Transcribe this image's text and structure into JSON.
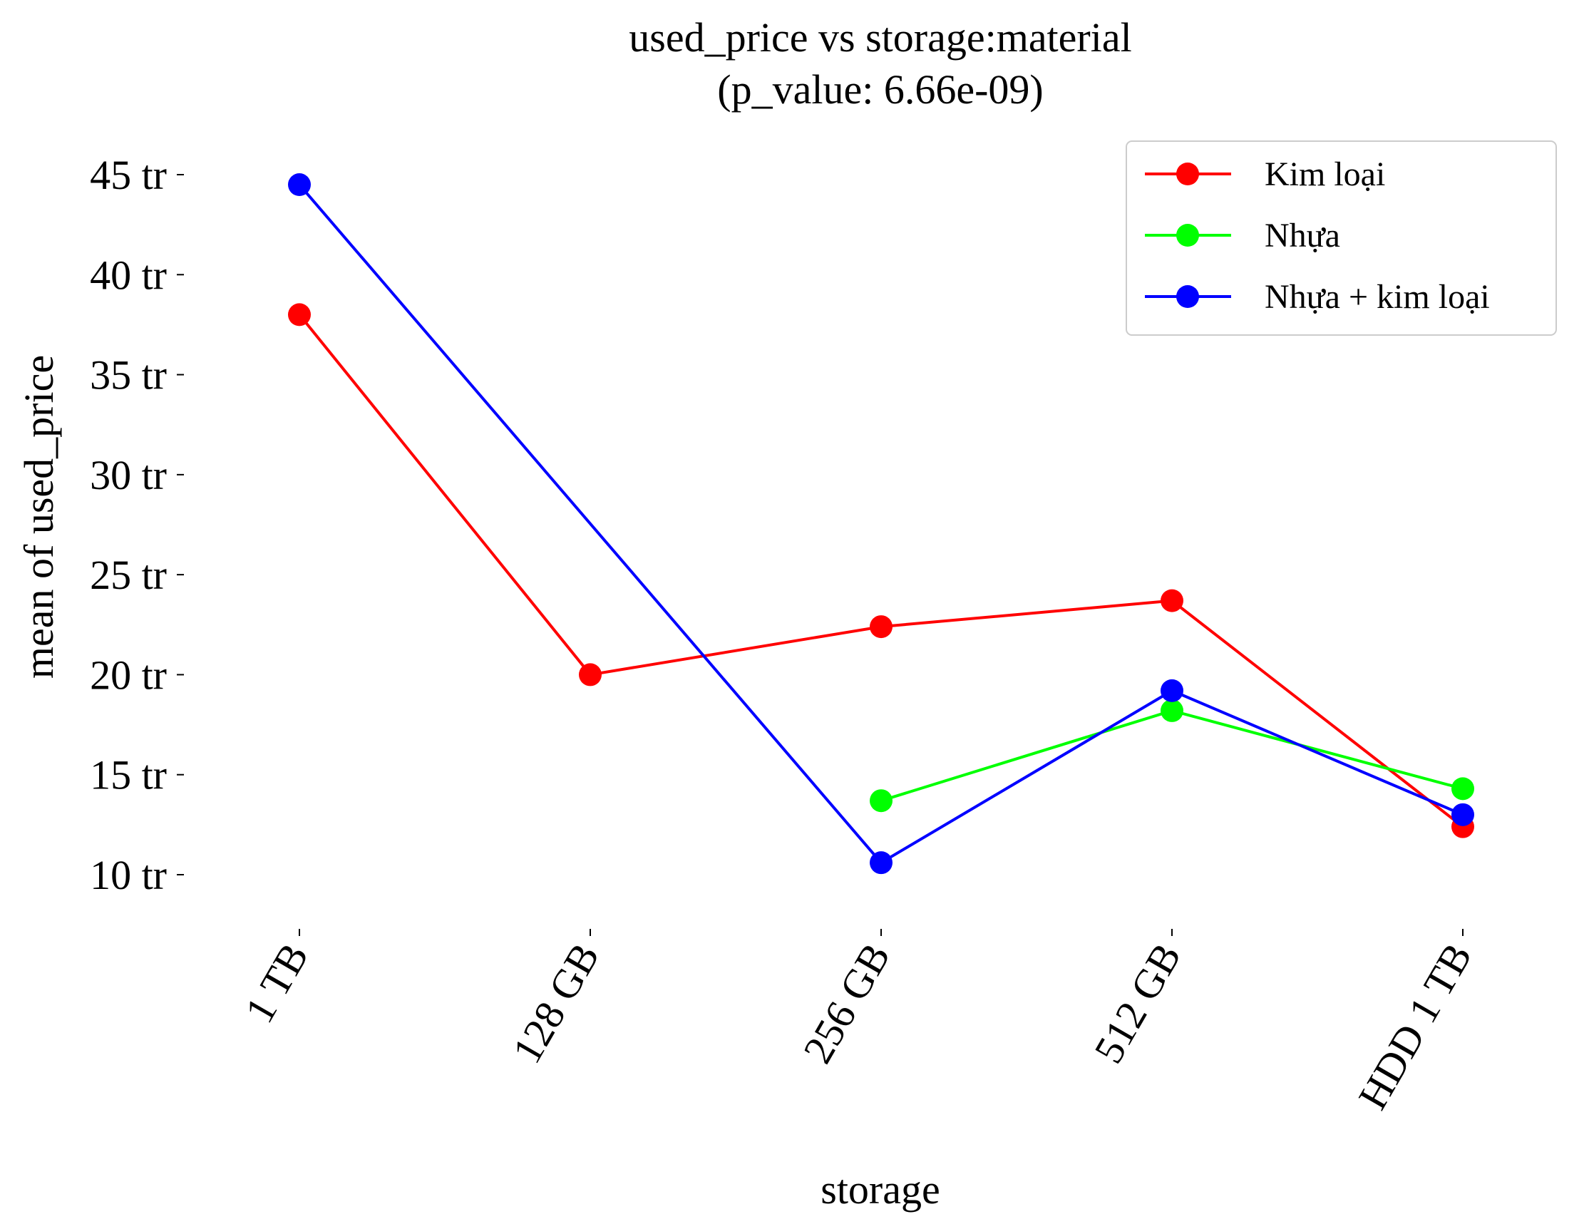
{
  "chart_data": {
    "type": "line",
    "title": "used_price vs storage:material",
    "subtitle": "(p_value: 6.66e-09)",
    "xlabel": "storage",
    "ylabel": "mean of used_price",
    "categories": [
      "1 TB",
      "128 GB",
      "256 GB",
      "512 GB",
      "HDD 1 TB"
    ],
    "yticks": [
      {
        "value": 10,
        "label": "10 tr"
      },
      {
        "value": 15,
        "label": "15 tr"
      },
      {
        "value": 20,
        "label": "20 tr"
      },
      {
        "value": 25,
        "label": "25 tr"
      },
      {
        "value": 30,
        "label": "30 tr"
      },
      {
        "value": 35,
        "label": "35 tr"
      },
      {
        "value": 40,
        "label": "40 tr"
      },
      {
        "value": 45,
        "label": "45 tr"
      }
    ],
    "ylim": [
      8,
      45.5
    ],
    "grid": false,
    "legend_position": "top-right",
    "series": [
      {
        "name": "Kim loại",
        "color": "#ff0000",
        "values": [
          38.0,
          20.0,
          22.4,
          23.7,
          12.4
        ]
      },
      {
        "name": "Nhựa",
        "color": "#00ff00",
        "values": [
          null,
          null,
          13.7,
          18.2,
          14.3
        ]
      },
      {
        "name": "Nhựa + kim loại",
        "color": "#0000ff",
        "values": [
          44.5,
          null,
          10.6,
          19.2,
          13.0
        ]
      }
    ]
  }
}
